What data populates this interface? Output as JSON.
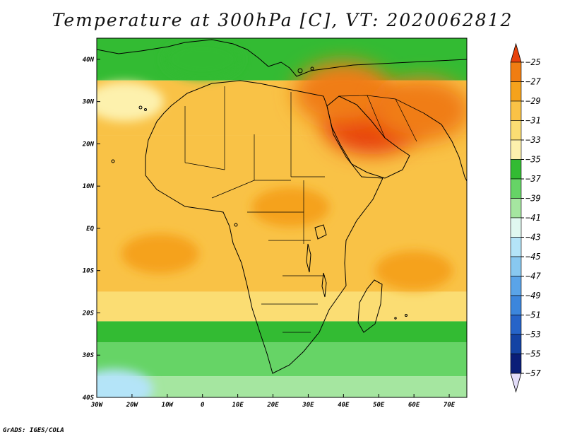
{
  "title": "Temperature at 300hPa [C], VT: 2020062812",
  "credit": "GrADS: IGES/COLA",
  "map": {
    "lon_range": [
      -30,
      75
    ],
    "lat_range": [
      -40,
      45
    ],
    "lon_ticks": [
      {
        "value": -30,
        "label": "30W"
      },
      {
        "value": -20,
        "label": "20W"
      },
      {
        "value": -10,
        "label": "10W"
      },
      {
        "value": 0,
        "label": "0"
      },
      {
        "value": 10,
        "label": "10E"
      },
      {
        "value": 20,
        "label": "20E"
      },
      {
        "value": 30,
        "label": "30E"
      },
      {
        "value": 40,
        "label": "40E"
      },
      {
        "value": 50,
        "label": "50E"
      },
      {
        "value": 60,
        "label": "60E"
      },
      {
        "value": 70,
        "label": "70E"
      }
    ],
    "lat_ticks": [
      {
        "value": 40,
        "label": "40N"
      },
      {
        "value": 30,
        "label": "30N"
      },
      {
        "value": 20,
        "label": "20N"
      },
      {
        "value": 10,
        "label": "10N"
      },
      {
        "value": 0,
        "label": "EQ"
      },
      {
        "value": -10,
        "label": "10S"
      },
      {
        "value": -20,
        "label": "20S"
      },
      {
        "value": -30,
        "label": "30S"
      },
      {
        "value": -40,
        "label": "40S"
      }
    ]
  },
  "colorbar": {
    "levels": [
      -25,
      -27,
      -29,
      -31,
      -33,
      -35,
      -37,
      -39,
      -41,
      -43,
      -45,
      -47,
      -49,
      -51,
      -53,
      -55,
      -57
    ],
    "colors": [
      "#e8420c",
      "#f07d12",
      "#f5a21c",
      "#f9c246",
      "#fbdd73",
      "#fdf1ad",
      "#33bb33",
      "#66d466",
      "#a5e6a0",
      "#e0f8f0",
      "#b4e4f8",
      "#88c8f0",
      "#5aa4e8",
      "#3c86dc",
      "#2664c8",
      "#1443a4",
      "#0a1e78"
    ],
    "top_color": "#e8420c",
    "bottom_color": "#e2dcf8"
  },
  "temperature_zones": {
    "bands": [
      {
        "lat_range": [
          35,
          45
        ],
        "value": -37
      },
      {
        "lat_range": [
          22,
          35
        ],
        "value": -32
      },
      {
        "lat_range": [
          -15,
          22
        ],
        "value": -32
      },
      {
        "lat_range": [
          -22,
          -15
        ],
        "value": -33
      },
      {
        "lat_range": [
          -27,
          -22
        ],
        "value": -37
      },
      {
        "lat_range": [
          -35,
          -27
        ],
        "value": -40
      },
      {
        "lat_range": [
          -40,
          -35
        ],
        "value": -42
      }
    ],
    "patches": [
      {
        "lon": 48,
        "lat": 25,
        "value": -26
      },
      {
        "lon": 40,
        "lat": 32,
        "value": -28
      },
      {
        "lon": 62,
        "lat": 28,
        "value": -27
      },
      {
        "lon": 25,
        "lat": 5,
        "value": -30
      },
      {
        "lon": -12,
        "lat": -6,
        "value": -30
      },
      {
        "lon": 60,
        "lat": -10,
        "value": -30
      },
      {
        "lon": 0,
        "lat": 40,
        "value": -38
      },
      {
        "lon": -22,
        "lat": 30,
        "value": -35
      },
      {
        "lon": -25,
        "lat": -38,
        "value": -45
      }
    ]
  }
}
